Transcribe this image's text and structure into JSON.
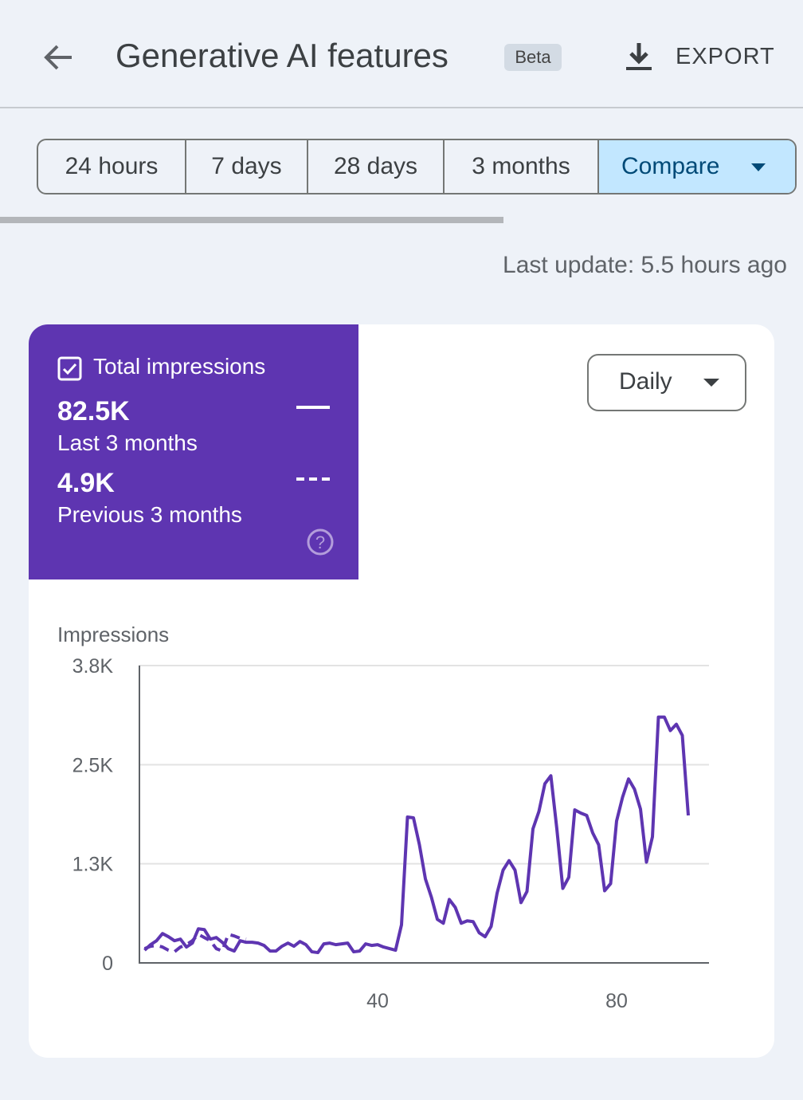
{
  "header": {
    "title": "Generative AI features",
    "badge": "Beta",
    "export": "EXPORT"
  },
  "tabs": [
    "24 hours",
    "7 days",
    "28 days",
    "3 months",
    "Compare"
  ],
  "last_update": "Last update: 5.5 hours ago",
  "card": {
    "title": "Total impressions",
    "totals": [
      "82.5K",
      "4.9K"
    ],
    "dropdown": "Daily"
  },
  "chart_data": {
    "type": "line",
    "ylabel": "Impressions",
    "x": [
      1,
      2,
      3,
      4,
      5,
      6,
      7,
      8,
      9,
      10,
      11,
      12,
      13,
      14,
      15,
      16,
      17,
      18,
      19,
      20,
      21,
      22,
      23,
      24,
      25,
      26,
      27,
      28,
      29,
      30,
      31,
      32,
      33,
      34,
      35,
      36,
      37,
      38,
      39,
      40,
      41,
      42,
      43,
      44,
      45,
      46,
      47,
      48,
      49,
      50,
      51,
      52,
      53,
      54,
      55,
      56,
      57,
      58,
      59,
      60,
      61,
      62,
      63,
      64,
      65,
      66,
      67,
      68,
      69,
      70,
      71,
      72,
      73,
      74,
      75,
      76,
      77,
      78,
      79,
      80,
      81,
      82,
      83,
      84,
      85,
      86,
      87,
      88,
      89,
      90,
      91,
      92
    ],
    "series": [
      {
        "name": "Last 3 months",
        "color": "#5e35b1",
        "dash": false,
        "values": [
          160,
          230,
          280,
          370,
          330,
          280,
          300,
          200,
          250,
          430,
          420,
          300,
          320,
          260,
          180,
          150,
          280,
          260,
          260,
          250,
          220,
          150,
          150,
          210,
          250,
          210,
          270,
          230,
          140,
          130,
          240,
          250,
          230,
          240,
          250,
          140,
          150,
          240,
          220,
          230,
          200,
          180,
          160,
          480,
          1840,
          1830,
          1490,
          1060,
          830,
          550,
          500,
          800,
          700,
          500,
          530,
          520,
          380,
          330,
          460,
          880,
          1170,
          1290,
          1170,
          760,
          900,
          1690,
          1910,
          2260,
          2360,
          1690,
          940,
          1080,
          1930,
          1890,
          1860,
          1640,
          1490,
          910,
          1000,
          1790,
          2090,
          2320,
          2190,
          1940,
          1270,
          1590,
          3100,
          3100,
          2930,
          3010,
          2870,
          1860
        ]
      },
      {
        "name": "Previous 3 months",
        "color": "#5e35b1",
        "dash": true,
        "values": [
          180,
          210,
          220,
          200,
          160,
          140,
          200,
          230,
          280,
          360,
          320,
          280,
          180,
          150,
          360,
          340,
          310,
          300,
          null,
          null,
          null,
          null,
          null,
          null,
          null,
          null,
          null,
          null,
          null,
          null,
          null,
          null,
          null,
          null,
          null,
          null,
          null,
          null,
          null,
          null,
          null,
          null,
          null,
          null,
          null,
          null,
          null,
          null,
          null,
          null,
          null,
          null,
          null,
          null,
          null,
          null,
          null,
          null,
          null,
          null,
          null,
          null,
          null,
          null,
          null,
          null,
          null,
          null,
          null,
          null,
          null,
          null,
          null,
          null,
          null,
          null,
          null,
          null,
          null,
          null,
          null,
          null,
          null,
          null,
          null,
          null,
          null,
          null,
          null,
          null,
          null,
          null
        ]
      }
    ],
    "xlim": [
      0,
      95
    ],
    "xticks": [
      40,
      80
    ],
    "ylim": [
      0,
      3750
    ],
    "yticks": [
      0,
      {
        "value": 1250,
        "label": "1.3K"
      },
      {
        "value": 2500,
        "label": "2.5K"
      },
      {
        "value": 3750,
        "label": "3.8K"
      }
    ],
    "grid": true
  }
}
